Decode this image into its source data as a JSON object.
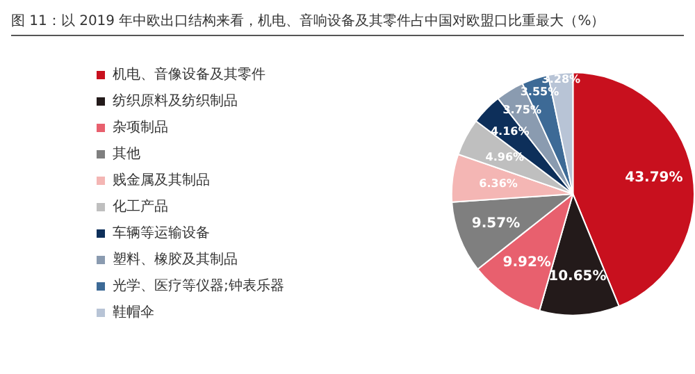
{
  "chart_data": {
    "type": "pie",
    "title": "图 11：以 2019 年中欧出口结构来看，机电、音响设备及其零件占中国对欧盟口比重最大（%）",
    "categories": [
      "机电、音像设备及其零件",
      "纺织原料及纺织制品",
      "杂项制品",
      "其他",
      "贱金属及其制品",
      "化工产品",
      "车辆等运输设备",
      "塑料、橡胶及其制品",
      "光学、医疗等仪器;钟表乐器",
      "鞋帽伞"
    ],
    "values": [
      43.79,
      10.65,
      9.92,
      9.57,
      6.36,
      4.96,
      4.16,
      3.75,
      3.55,
      3.28
    ],
    "colors": [
      "#c8101e",
      "#231a1a",
      "#e8606e",
      "#7f7f7f",
      "#f4b6b4",
      "#bfbfbf",
      "#0d2f5a",
      "#8a9bb0",
      "#3d6a96",
      "#b8c4d6"
    ],
    "value_labels": [
      "43.79%",
      "10.65%",
      "9.92%",
      "9.57%",
      "6.36%",
      "4.96%",
      "4.16%",
      "3.75%",
      "3.55%",
      "3.28%"
    ],
    "legend": "left"
  }
}
